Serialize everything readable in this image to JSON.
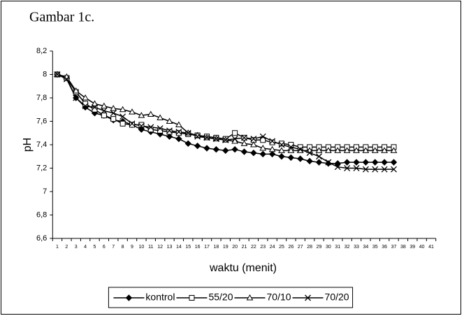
{
  "chart_data": {
    "type": "line",
    "title": "Gambar 1c.",
    "x_label": "waktu (menit)",
    "y_label": "pH",
    "categories": [
      "1",
      "2",
      "3",
      "4",
      "5",
      "6",
      "7",
      "8",
      "9",
      "10",
      "11",
      "12",
      "13",
      "14",
      "15",
      "16",
      "17",
      "18",
      "19",
      "20",
      "21",
      "22",
      "23",
      "24",
      "25",
      "26",
      "27",
      "28",
      "29",
      "30",
      "31",
      "32",
      "33",
      "34",
      "35",
      "36",
      "37",
      "38",
      "39",
      "40",
      "41"
    ],
    "ylim": [
      6.6,
      8.2
    ],
    "yticks": [
      {
        "value": 6.6,
        "label": "6,6"
      },
      {
        "value": 6.8,
        "label": "6,8"
      },
      7,
      {
        "value": 7.2,
        "label": "7,2"
      },
      {
        "value": 7.4,
        "label": "7,4"
      },
      {
        "value": 7.6,
        "label": "7,6"
      },
      {
        "value": 7.8,
        "label": "7,8"
      },
      8,
      {
        "value": 8.2,
        "label": "8,2"
      }
    ],
    "legend": "bottom",
    "series": [
      {
        "name": "kontrol",
        "color": "#000000",
        "marker": "diamond",
        "values": [
          8.0,
          7.97,
          7.8,
          7.72,
          7.67,
          7.65,
          7.61,
          7.6,
          7.57,
          7.53,
          7.51,
          7.49,
          7.47,
          7.45,
          7.41,
          7.39,
          7.37,
          7.36,
          7.35,
          7.36,
          7.34,
          7.33,
          7.32,
          7.32,
          7.3,
          7.29,
          7.28,
          7.26,
          7.25,
          7.24,
          7.24,
          7.25,
          7.25,
          7.25,
          7.25,
          7.25,
          7.25,
          null,
          null,
          null,
          null
        ]
      },
      {
        "name": "55/20",
        "color": "#000000",
        "marker": "square",
        "values": [
          8.0,
          7.97,
          7.85,
          7.75,
          7.7,
          7.65,
          7.62,
          7.58,
          7.57,
          7.57,
          7.53,
          7.52,
          7.51,
          7.5,
          7.49,
          7.48,
          7.47,
          7.46,
          7.45,
          7.5,
          7.46,
          7.44,
          7.44,
          7.42,
          7.41,
          7.4,
          7.38,
          7.38,
          7.38,
          7.38,
          7.38,
          7.38,
          7.38,
          7.38,
          7.38,
          7.38,
          7.38,
          null,
          null,
          null,
          null
        ]
      },
      {
        "name": "70/10",
        "color": "#000000",
        "marker": "triangle",
        "values": [
          8.0,
          7.98,
          7.86,
          7.8,
          7.75,
          7.73,
          7.71,
          7.7,
          7.68,
          7.65,
          7.66,
          7.63,
          7.6,
          7.57,
          7.5,
          7.48,
          7.46,
          7.45,
          7.44,
          7.43,
          7.41,
          7.4,
          7.37,
          7.36,
          7.35,
          7.35,
          7.35,
          7.35,
          7.35,
          7.35,
          7.35,
          7.35,
          7.35,
          7.35,
          7.35,
          7.35,
          7.35,
          null,
          null,
          null,
          null
        ]
      },
      {
        "name": "70/20",
        "color": "#000000",
        "marker": "x",
        "values": [
          8.0,
          7.96,
          7.8,
          7.73,
          7.72,
          7.69,
          7.67,
          7.64,
          7.58,
          7.56,
          7.55,
          7.54,
          7.52,
          7.51,
          7.5,
          7.47,
          7.46,
          7.45,
          7.44,
          7.45,
          7.46,
          7.45,
          7.47,
          7.43,
          7.4,
          7.38,
          7.36,
          7.33,
          7.3,
          7.25,
          7.21,
          7.2,
          7.2,
          7.19,
          7.19,
          7.19,
          7.19,
          null,
          null,
          null,
          null
        ]
      }
    ]
  }
}
